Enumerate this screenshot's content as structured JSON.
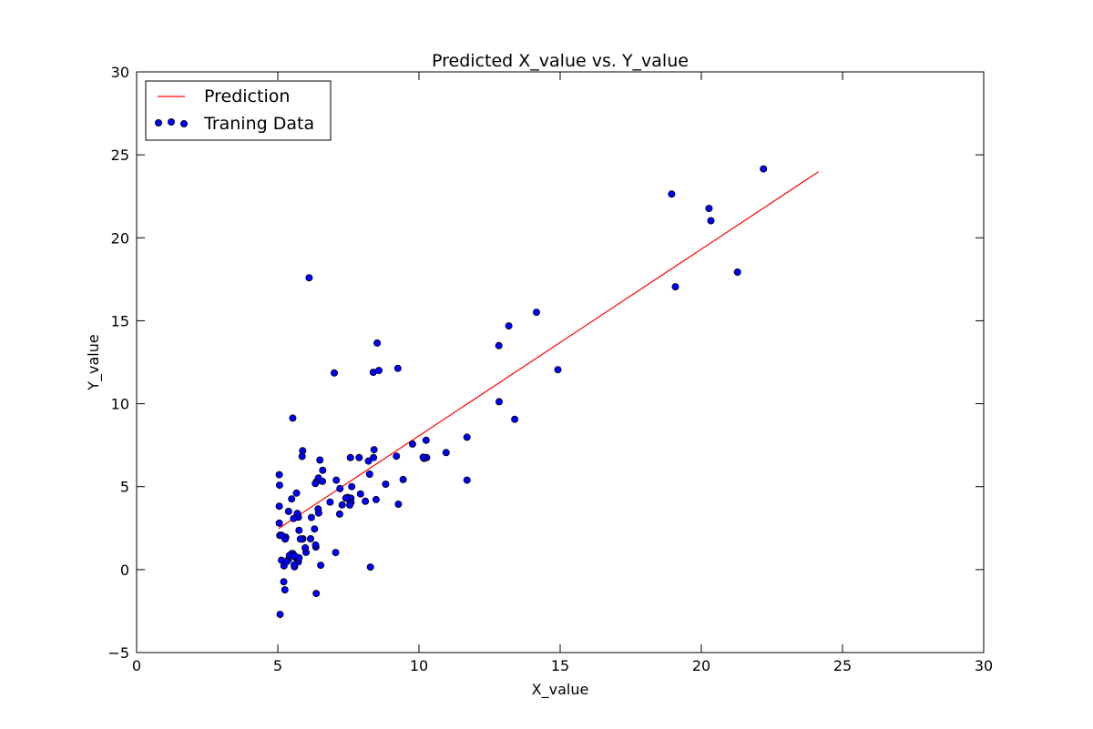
{
  "chart_data": {
    "type": "scatter",
    "title": "Predicted X_value vs. Y_value",
    "xlabel": "X_value",
    "ylabel": "Y_value",
    "xlim": [
      0,
      30
    ],
    "ylim": [
      -5,
      30
    ],
    "xticks": [
      0,
      5,
      10,
      15,
      20,
      25,
      30
    ],
    "yticks": [
      -5,
      0,
      5,
      10,
      15,
      20,
      25,
      30
    ],
    "xtick_labels": [
      "0",
      "5",
      "10",
      "15",
      "20",
      "25",
      "30"
    ],
    "ytick_labels": [
      "−5",
      "0",
      "5",
      "10",
      "15",
      "20",
      "25",
      "30"
    ],
    "grid": false,
    "legend_position": "top-left",
    "legend": [
      {
        "label": "Prediction",
        "kind": "line",
        "color": "#ff0000"
      },
      {
        "label": "Traning Data",
        "kind": "scatter",
        "color": "#0000ff"
      }
    ],
    "series": [
      {
        "name": "Prediction",
        "type": "line",
        "color": "#ff0000",
        "points": [
          [
            5.03,
            2.47
          ],
          [
            24.15,
            23.98
          ]
        ]
      },
      {
        "name": "Traning Data",
        "type": "scatter",
        "color": "#0000ff",
        "points": [
          [
            6.11,
            17.59
          ],
          [
            5.53,
            9.13
          ],
          [
            8.52,
            13.66
          ],
          [
            7.0,
            11.85
          ],
          [
            5.86,
            6.82
          ],
          [
            8.38,
            11.89
          ],
          [
            7.48,
            4.35
          ],
          [
            8.58,
            12.0
          ],
          [
            6.49,
            6.6
          ],
          [
            5.05,
            3.82
          ],
          [
            5.71,
            3.25
          ],
          [
            14.16,
            15.51
          ],
          [
            5.73,
            3.16
          ],
          [
            8.41,
            7.23
          ],
          [
            5.64,
            0.72
          ],
          [
            5.38,
            3.51
          ],
          [
            6.37,
            5.3
          ],
          [
            5.13,
            0.56
          ],
          [
            6.43,
            3.65
          ],
          [
            7.07,
            5.39
          ],
          [
            6.19,
            3.14
          ],
          [
            20.27,
            21.77
          ],
          [
            5.49,
            4.26
          ],
          [
            6.33,
            5.19
          ],
          [
            5.56,
            3.08
          ],
          [
            18.95,
            22.64
          ],
          [
            12.83,
            13.5
          ],
          [
            10.96,
            7.05
          ],
          [
            13.18,
            14.69
          ],
          [
            22.2,
            24.15
          ],
          [
            5.25,
            -1.22
          ],
          [
            6.59,
            5.99
          ],
          [
            9.25,
            12.13
          ],
          [
            5.89,
            1.85
          ],
          [
            8.21,
            6.54
          ],
          [
            7.93,
            4.56
          ],
          [
            8.1,
            4.12
          ],
          [
            5.69,
            3.39
          ],
          [
            19.08,
            17.05
          ],
          [
            7.44,
            4.29
          ],
          [
            6.16,
            1.86
          ],
          [
            5.53,
            0.97
          ],
          [
            6.35,
            1.36
          ],
          [
            5.06,
            5.09
          ],
          [
            5.05,
            2.8
          ],
          [
            5.12,
            2.07
          ],
          [
            5.28,
            1.95
          ],
          [
            11.7,
            7.98
          ],
          [
            6.3,
            2.45
          ],
          [
            5.86,
            1.84
          ],
          [
            8.82,
            5.15
          ],
          [
            5.88,
            7.16
          ],
          [
            6.44,
            5.52
          ],
          [
            9.44,
            5.43
          ],
          [
            5.21,
            -0.73
          ],
          [
            5.75,
            2.37
          ],
          [
            8.28,
            0.15
          ],
          [
            6.36,
            -1.44
          ],
          [
            5.59,
            0.17
          ],
          [
            5.22,
            0.23
          ],
          [
            5.52,
            0.93
          ],
          [
            5.26,
            1.84
          ],
          [
            5.05,
            5.72
          ],
          [
            5.08,
            -2.7
          ],
          [
            10.27,
            6.75
          ],
          [
            5.73,
            0.47
          ],
          [
            5.07,
            2.06
          ],
          [
            5.8,
            1.84
          ],
          [
            5.66,
            4.61
          ],
          [
            11.7,
            5.39
          ],
          [
            5.58,
            0.29
          ],
          [
            6.52,
            0.26
          ],
          [
            7.57,
            6.75
          ],
          [
            9.27,
            3.94
          ],
          [
            8.39,
            6.75
          ],
          [
            5.14,
            2.06
          ],
          [
            9.2,
            6.84
          ],
          [
            7.88,
            6.75
          ],
          [
            8.25,
            5.75
          ],
          [
            7.2,
            4.88
          ],
          [
            7.28,
            3.9
          ],
          [
            13.39,
            9.06
          ],
          [
            5.38,
            0.62
          ],
          [
            5.49,
            0.96
          ],
          [
            6.0,
            1.04
          ],
          [
            5.32,
            0.48
          ],
          [
            7.05,
            1.03
          ],
          [
            7.62,
            5.0
          ],
          [
            8.48,
            4.22
          ],
          [
            6.85,
            4.07
          ],
          [
            5.97,
            1.31
          ],
          [
            12.84,
            10.12
          ],
          [
            10.18,
            6.7
          ],
          [
            6.58,
            5.32
          ],
          [
            7.59,
            4.3
          ],
          [
            6.45,
            3.41
          ],
          [
            10.15,
            6.77
          ],
          [
            9.77,
            7.57
          ],
          [
            10.25,
            7.8
          ],
          [
            20.34,
            21.03
          ],
          [
            14.92,
            12.05
          ],
          [
            21.28,
            17.93
          ],
          [
            7.59,
            4.05
          ],
          [
            7.41,
            4.31
          ],
          [
            6.34,
            1.48
          ],
          [
            5.75,
            0.71
          ],
          [
            7.19,
            3.35
          ],
          [
            5.41,
            0.85
          ],
          [
            5.6,
            0.83
          ],
          [
            7.55,
            3.89
          ]
        ]
      }
    ]
  }
}
